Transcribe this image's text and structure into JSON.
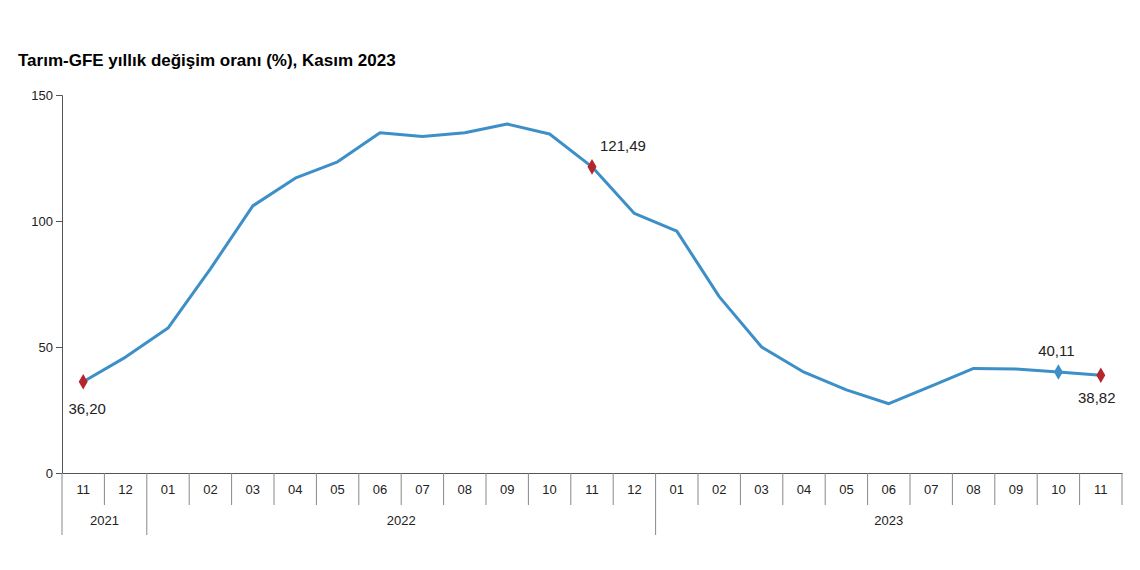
{
  "chart_data": {
    "type": "line",
    "title": "Tarım-GFE yıllık değişim oranı (%), Kasım 2023",
    "categories": [
      "11",
      "12",
      "01",
      "02",
      "03",
      "04",
      "05",
      "06",
      "07",
      "08",
      "09",
      "10",
      "11",
      "12",
      "01",
      "02",
      "03",
      "04",
      "05",
      "06",
      "07",
      "08",
      "09",
      "10",
      "11"
    ],
    "x_groups": [
      {
        "label": "2021",
        "count": 2
      },
      {
        "label": "2022",
        "count": 12
      },
      {
        "label": "2023",
        "count": 11
      }
    ],
    "values": [
      36.2,
      46,
      57.5,
      81,
      106,
      117,
      123.5,
      135,
      133.5,
      135,
      138.5,
      134.5,
      121.49,
      103,
      96,
      70,
      50,
      40,
      33,
      27.5,
      34.5,
      41.5,
      41.3,
      40.11,
      38.82
    ],
    "value_labels": [
      "36,20",
      null,
      null,
      null,
      null,
      null,
      null,
      null,
      null,
      null,
      null,
      null,
      "121,49",
      null,
      null,
      null,
      null,
      null,
      null,
      null,
      null,
      null,
      null,
      "40,11",
      "38,82"
    ],
    "colors": [
      "#b5262c",
      null,
      null,
      null,
      null,
      null,
      null,
      null,
      null,
      null,
      null,
      null,
      "#b5262c",
      null,
      null,
      null,
      null,
      null,
      null,
      null,
      null,
      null,
      null,
      "#3d8fc8",
      "#b5262c"
    ],
    "color": "#3d8fc8",
    "marker": "diamond",
    "ylim": [
      0,
      150
    ],
    "yticks": [
      0,
      50,
      100,
      150
    ],
    "grid": false,
    "data_labels": true
  }
}
